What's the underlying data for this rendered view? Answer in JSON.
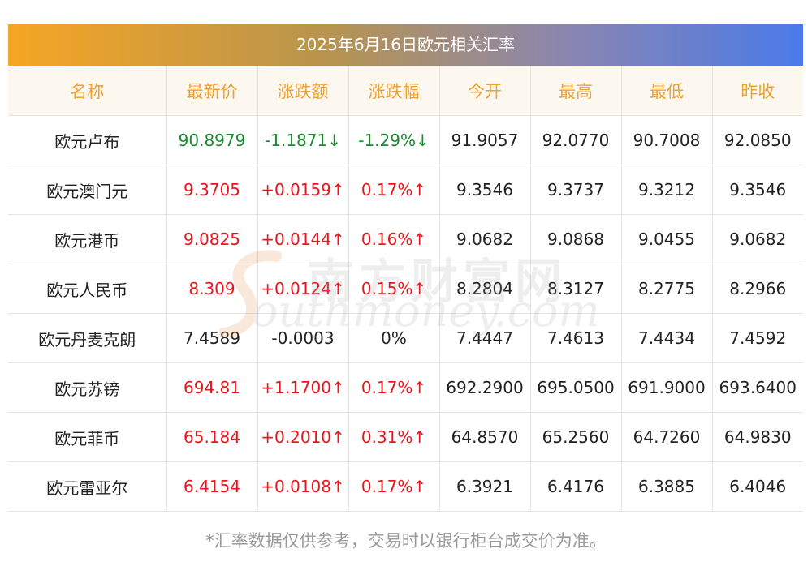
{
  "title": "2025年6月16日欧元相关汇率",
  "columns": [
    "名称",
    "最新价",
    "涨跌额",
    "涨跌幅",
    "今开",
    "最高",
    "最低",
    "昨收"
  ],
  "rows": [
    {
      "name": "欧元卢布",
      "latest": "90.8979",
      "change": "-1.1871↓",
      "pct": "-1.29%↓",
      "open": "91.9057",
      "high": "92.0770",
      "low": "90.7008",
      "prev": "92.0850",
      "dir": "down"
    },
    {
      "name": "欧元澳门元",
      "latest": "9.3705",
      "change": "+0.0159↑",
      "pct": "0.17%↑",
      "open": "9.3546",
      "high": "9.3737",
      "low": "9.3212",
      "prev": "9.3546",
      "dir": "up"
    },
    {
      "name": "欧元港币",
      "latest": "9.0825",
      "change": "+0.0144↑",
      "pct": "0.16%↑",
      "open": "9.0682",
      "high": "9.0868",
      "low": "9.0455",
      "prev": "9.0682",
      "dir": "up"
    },
    {
      "name": "欧元人民币",
      "latest": "8.309",
      "change": "+0.0124↑",
      "pct": "0.15%↑",
      "open": "8.2804",
      "high": "8.3127",
      "low": "8.2775",
      "prev": "8.2966",
      "dir": "up"
    },
    {
      "name": "欧元丹麦克朗",
      "latest": "7.4589",
      "change": "-0.0003",
      "pct": "0%",
      "open": "7.4447",
      "high": "7.4613",
      "low": "7.4434",
      "prev": "7.4592",
      "dir": "flat"
    },
    {
      "name": "欧元苏镑",
      "latest": "694.81",
      "change": "+1.1700↑",
      "pct": "0.17%↑",
      "open": "692.2900",
      "high": "695.0500",
      "low": "691.9000",
      "prev": "693.6400",
      "dir": "up"
    },
    {
      "name": "欧元菲币",
      "latest": "65.184",
      "change": "+0.2010↑",
      "pct": "0.31%↑",
      "open": "64.8570",
      "high": "65.2560",
      "low": "64.7260",
      "prev": "64.9830",
      "dir": "up"
    },
    {
      "name": "欧元雷亚尔",
      "latest": "6.4154",
      "change": "+0.0108↑",
      "pct": "0.17%↑",
      "open": "6.3921",
      "high": "6.4176",
      "low": "6.3885",
      "prev": "6.4046",
      "dir": "up"
    }
  ],
  "footnote": "*汇率数据仅供参考，交易时以银行柜台成交价为准。",
  "watermark": {
    "cn": "南方财富网",
    "en": "outhmoney.com"
  },
  "colors": {
    "up": "#e8161c",
    "down": "#1a8a2e",
    "header_text": "#f0a030",
    "header_bg": "#fdf8ef"
  }
}
